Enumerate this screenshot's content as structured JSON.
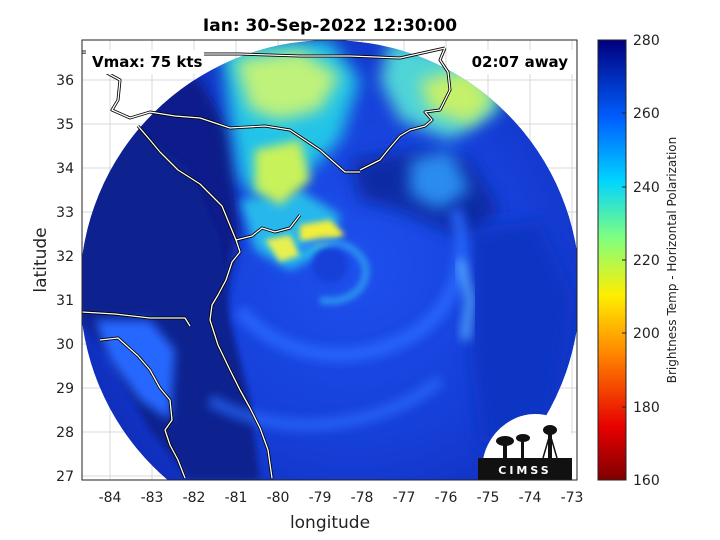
{
  "title": "Ian: 30-Sep-2022 12:30:00",
  "vmax_text": "Vmax: 75 kts",
  "away_text": "02:07 away",
  "xlabel": "longitude",
  "ylabel": "latitude",
  "colorbar_label": "Brightness Temp - Horizontal Polarization",
  "logo_text": "CIMSS",
  "x_ticks": [
    "-84",
    "-83",
    "-82",
    "-81",
    "-80",
    "-79",
    "-78",
    "-77",
    "-76",
    "-75",
    "-74",
    "-73"
  ],
  "y_ticks": [
    "27",
    "28",
    "29",
    "30",
    "31",
    "32",
    "33",
    "34",
    "35",
    "36"
  ],
  "colorbar_ticks": [
    "160",
    "180",
    "200",
    "220",
    "240",
    "260",
    "280"
  ],
  "colors": {
    "deep_blue": "#0a1f8a",
    "mid_blue": "#1a3ad8",
    "bright_blue": "#2a6cff",
    "cyan": "#21c4e8",
    "yellowgreen": "#c8f25a",
    "yellow": "#f2ee3a"
  },
  "chart_data": {
    "type": "heatmap",
    "title": "Ian: 30-Sep-2022 12:30:00",
    "xlabel": "longitude",
    "ylabel": "latitude",
    "xlim": [
      -84.6,
      -72.9
    ],
    "ylim": [
      26.9,
      36.8
    ],
    "colorbar": {
      "label": "Brightness Temp - Horizontal Polarization",
      "range": [
        160,
        280
      ],
      "ticks": [
        160,
        180,
        200,
        220,
        240,
        260,
        280
      ]
    },
    "storm_center_lon_lat": [
      -79.1,
      31.8
    ],
    "swath_center_lon_lat": [
      -78.7,
      31.6
    ],
    "swath_radius_deg": 5.9
  }
}
